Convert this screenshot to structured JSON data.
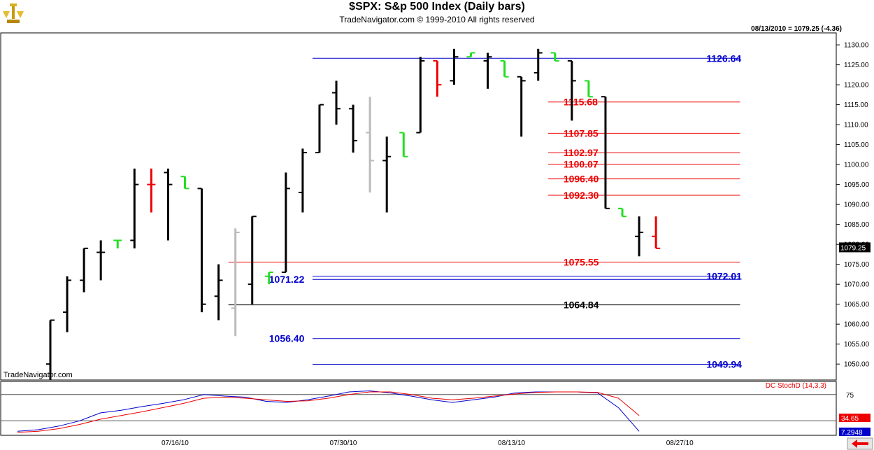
{
  "header": {
    "title": "$SPX:  S&p 500 Index  (Daily bars)",
    "subtitle": "TradeNavigator.com © 1999-2010 All rights reserved",
    "status": "08/13/2010 = 1079.25 (-4.36)",
    "watermark": "TradeNavigator.com",
    "logo_icon": "trade-navigator-logo-icon"
  },
  "colors": {
    "black_bar": "#000000",
    "up_green": "#22dd22",
    "down_red": "#ee0000",
    "gray_bar": "#bbbbbb",
    "blue_level": "#0000cc",
    "red_level": "#ee0000",
    "black_level": "#000000"
  },
  "chart_data": [
    {
      "type": "ohlc",
      "ylim": [
        1046,
        1133
      ],
      "y_ticks": [
        "1050.00",
        "1055.00",
        "1060.00",
        "1065.00",
        "1070.00",
        "1075.00",
        "1080.00",
        "1085.00",
        "1090.00",
        "1095.00",
        "1100.00",
        "1105.00",
        "1110.00",
        "1115.00",
        "1120.00",
        "1125.00",
        "1130.00"
      ],
      "x_labels": [
        "07/16/10",
        "07/30/10",
        "08/13/10",
        "08/27/10"
      ],
      "last_price_label": "1079.25",
      "bars": [
        {
          "o": 1050,
          "h": 1061,
          "l": 1046,
          "c": 1061,
          "color": "black"
        },
        {
          "o": 1063,
          "h": 1072,
          "l": 1058,
          "c": 1071,
          "color": "black"
        },
        {
          "o": 1071,
          "h": 1079,
          "l": 1068,
          "c": 1079,
          "color": "black"
        },
        {
          "o": 1078,
          "h": 1081,
          "l": 1071,
          "c": 1078,
          "color": "black"
        },
        {
          "o": 1081,
          "h": 1081,
          "l": 1079,
          "c": 1081,
          "color": "green"
        },
        {
          "o": 1081,
          "h": 1099,
          "l": 1079,
          "c": 1095,
          "color": "black"
        },
        {
          "o": 1095,
          "h": 1099,
          "l": 1088,
          "c": 1095,
          "color": "red"
        },
        {
          "o": 1098,
          "h": 1099,
          "l": 1081,
          "c": 1095,
          "color": "black"
        },
        {
          "o": 1097,
          "h": 1097,
          "l": 1094,
          "c": 1094,
          "color": "green"
        },
        {
          "o": 1094,
          "h": 1094,
          "l": 1063,
          "c": 1065,
          "color": "black"
        },
        {
          "o": 1067,
          "h": 1075,
          "l": 1061,
          "c": 1071,
          "color": "black"
        },
        {
          "o": 1064,
          "h": 1084,
          "l": 1057,
          "c": 1083,
          "color": "gray"
        },
        {
          "o": 1070,
          "h": 1087,
          "l": 1065,
          "c": 1087,
          "color": "black"
        },
        {
          "o": 1072,
          "h": 1073,
          "l": 1070,
          "c": 1073,
          "color": "green"
        },
        {
          "o": 1073,
          "h": 1098,
          "l": 1073,
          "c": 1094,
          "color": "black"
        },
        {
          "o": 1093,
          "h": 1104,
          "l": 1088,
          "c": 1103,
          "color": "black"
        },
        {
          "o": 1103,
          "h": 1115,
          "l": 1103,
          "c": 1115,
          "color": "black"
        },
        {
          "o": 1118,
          "h": 1121,
          "l": 1110,
          "c": 1114,
          "color": "black"
        },
        {
          "o": 1114,
          "h": 1115,
          "l": 1103,
          "c": 1106,
          "color": "black"
        },
        {
          "o": 1108,
          "h": 1117,
          "l": 1093,
          "c": 1101,
          "color": "gray"
        },
        {
          "o": 1101,
          "h": 1107,
          "l": 1088,
          "c": 1102,
          "color": "black"
        },
        {
          "o": 1108,
          "h": 1108,
          "l": 1102,
          "c": 1102,
          "color": "green"
        },
        {
          "o": 1108,
          "h": 1127,
          "l": 1108,
          "c": 1126,
          "color": "black"
        },
        {
          "o": 1126,
          "h": 1126,
          "l": 1117,
          "c": 1120,
          "color": "red"
        },
        {
          "o": 1121,
          "h": 1129,
          "l": 1120,
          "c": 1127,
          "color": "black"
        },
        {
          "o": 1127,
          "h": 1128,
          "l": 1127,
          "c": 1128,
          "color": "green"
        },
        {
          "o": 1126,
          "h": 1128,
          "l": 1119,
          "c": 1127,
          "color": "black"
        },
        {
          "o": 1126,
          "h": 1126,
          "l": 1122,
          "c": 1122,
          "color": "green"
        },
        {
          "o": 1122,
          "h": 1122,
          "l": 1107,
          "c": 1121,
          "color": "black"
        },
        {
          "o": 1123,
          "h": 1129,
          "l": 1121,
          "c": 1128,
          "color": "black"
        },
        {
          "o": 1128,
          "h": 1128,
          "l": 1126,
          "c": 1126,
          "color": "green"
        },
        {
          "o": 1126,
          "h": 1126,
          "l": 1111,
          "c": 1121,
          "color": "black"
        },
        {
          "o": 1121,
          "h": 1121,
          "l": 1117,
          "c": 1117,
          "color": "green"
        },
        {
          "o": 1117,
          "h": 1117,
          "l": 1089,
          "c": 1089,
          "color": "black"
        },
        {
          "o": 1089,
          "h": 1089,
          "l": 1087,
          "c": 1087,
          "color": "green"
        },
        {
          "o": 1082,
          "h": 1087,
          "l": 1077,
          "c": 1083,
          "color": "black"
        },
        {
          "o": 1082,
          "h": 1087,
          "l": 1079,
          "c": 1079,
          "color": "red"
        }
      ],
      "levels": [
        {
          "value": 1126.64,
          "label": "1126.64",
          "color": "blue",
          "from": 16,
          "to": 41,
          "label_side": "right"
        },
        {
          "value": 1115.68,
          "label": "1115.68",
          "color": "red",
          "from": 30,
          "to": 41,
          "label_side": "right"
        },
        {
          "value": 1107.85,
          "label": "1107.85",
          "color": "red",
          "from": 30,
          "to": 41,
          "label_side": "right"
        },
        {
          "value": 1102.97,
          "label": "1102.97",
          "color": "red",
          "from": 30,
          "to": 41,
          "label_side": "right"
        },
        {
          "value": 1100.07,
          "label": "1100.07",
          "color": "red",
          "from": 30,
          "to": 41,
          "label_side": "right"
        },
        {
          "value": 1096.4,
          "label": "1096.40",
          "color": "red",
          "from": 30,
          "to": 41,
          "label_side": "right"
        },
        {
          "value": 1092.3,
          "label": "1092.30",
          "color": "red",
          "from": 30,
          "to": 41,
          "label_side": "right"
        },
        {
          "value": 1075.55,
          "label": "1075.55",
          "color": "red",
          "from": 11,
          "to": 41,
          "label_side": "right"
        },
        {
          "value": 1072.01,
          "label": "1072.01",
          "color": "blue",
          "from": 16,
          "to": 41,
          "label_side": "right"
        },
        {
          "value": 1071.22,
          "label": "1071.22",
          "color": "blue",
          "from": 16,
          "to": 41,
          "label_side": "left"
        },
        {
          "value": 1064.84,
          "label": "1064.84",
          "color": "black",
          "from": 11,
          "to": 41,
          "label_side": "right"
        },
        {
          "value": 1056.4,
          "label": "1056.40",
          "color": "blue",
          "from": 16,
          "to": 41,
          "label_side": "left"
        },
        {
          "value": 1049.94,
          "label": "1049.94",
          "color": "blue",
          "from": 16,
          "to": 41,
          "label_side": "right"
        }
      ]
    },
    {
      "type": "line",
      "title": "DC StochD (14,3,3)",
      "ylim": [
        0,
        100
      ],
      "y_ticks": [
        "75"
      ],
      "reference_lines": [
        75,
        25
      ],
      "value_labels": [
        {
          "value": "34.65",
          "color": "#ee0000"
        },
        {
          "value": "7.2948",
          "color": "#0000cc"
        }
      ],
      "series": [
        {
          "color": "blue",
          "values": [
            5,
            8,
            15,
            25,
            40,
            45,
            52,
            58,
            65,
            75,
            72,
            70,
            62,
            60,
            65,
            72,
            80,
            82,
            78,
            72,
            65,
            60,
            65,
            70,
            78,
            80,
            80,
            80,
            78,
            50,
            5
          ]
        },
        {
          "color": "red",
          "values": [
            3,
            5,
            10,
            18,
            28,
            35,
            42,
            50,
            58,
            68,
            70,
            68,
            65,
            62,
            63,
            68,
            75,
            80,
            80,
            75,
            68,
            65,
            68,
            72,
            76,
            79,
            80,
            80,
            79,
            68,
            35
          ]
        }
      ]
    }
  ]
}
